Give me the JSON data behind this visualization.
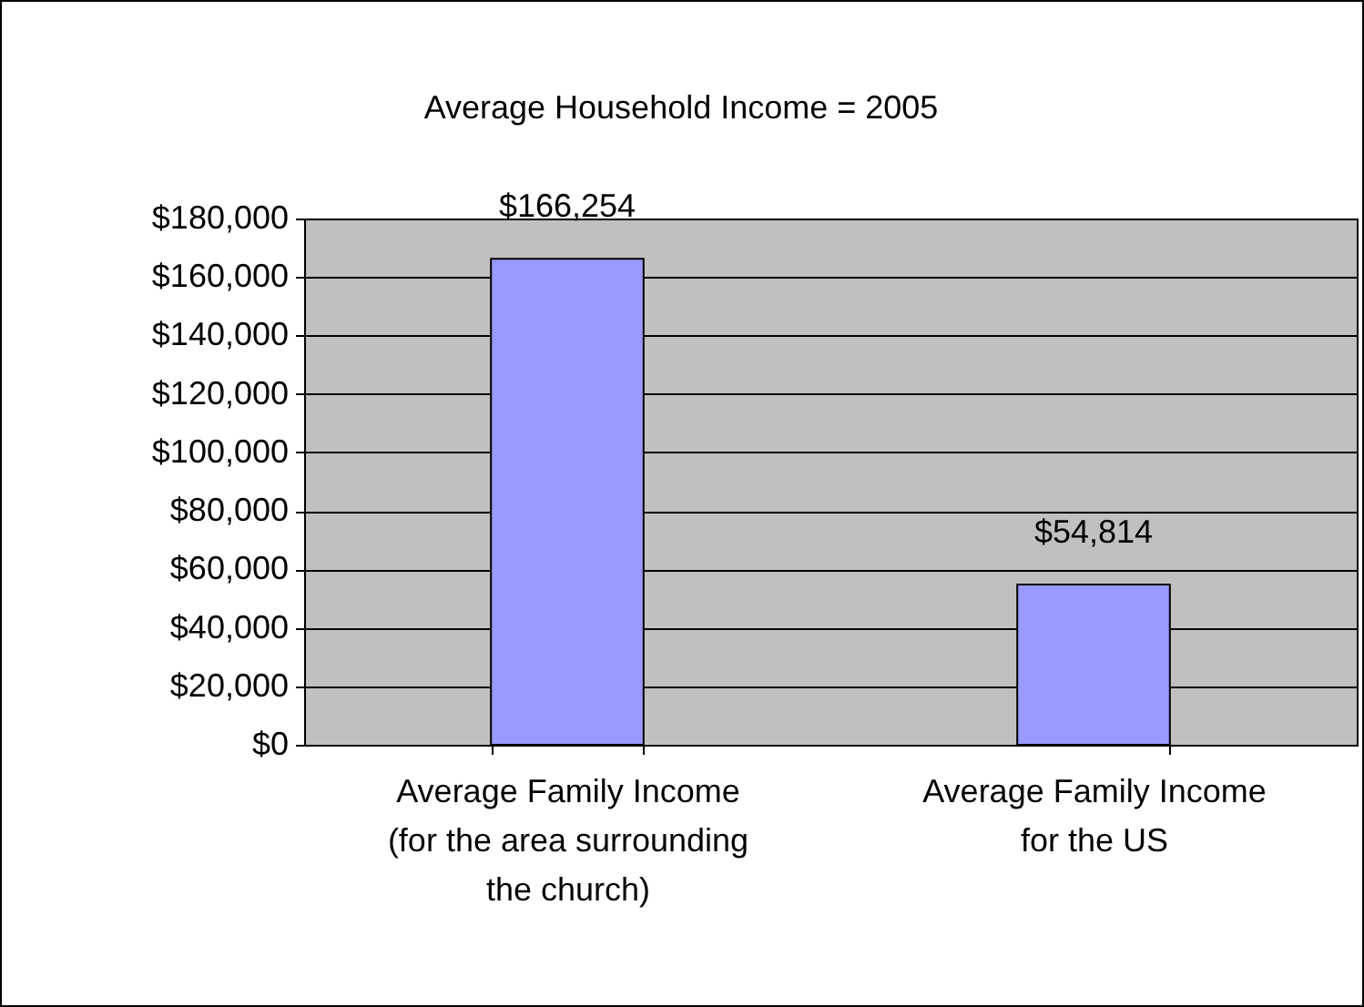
{
  "chart_data": {
    "type": "bar",
    "title": "Average Household Income = 2005",
    "categories": [
      "Average Family Income (for the area surrounding the church)",
      "Average Family Income for the US"
    ],
    "values": [
      166254,
      54814
    ],
    "color": "#9999ff",
    "value_labels": [
      "$166,254",
      "$54,814"
    ],
    "ylim": [
      0,
      180000
    ],
    "yticks": [
      {
        "value": 0,
        "label": "$0"
      },
      {
        "value": 20000,
        "label": "$20,000"
      },
      {
        "value": 40000,
        "label": "$40,000"
      },
      {
        "value": 60000,
        "label": "$60,000"
      },
      {
        "value": 80000,
        "label": "$80,000"
      },
      {
        "value": 100000,
        "label": "$100,000"
      },
      {
        "value": 120000,
        "label": "$120,000"
      },
      {
        "value": 140000,
        "label": "$140,000"
      },
      {
        "value": 160000,
        "label": "$160,000"
      },
      {
        "value": 180000,
        "label": "$180,000"
      }
    ],
    "grid": "y"
  }
}
